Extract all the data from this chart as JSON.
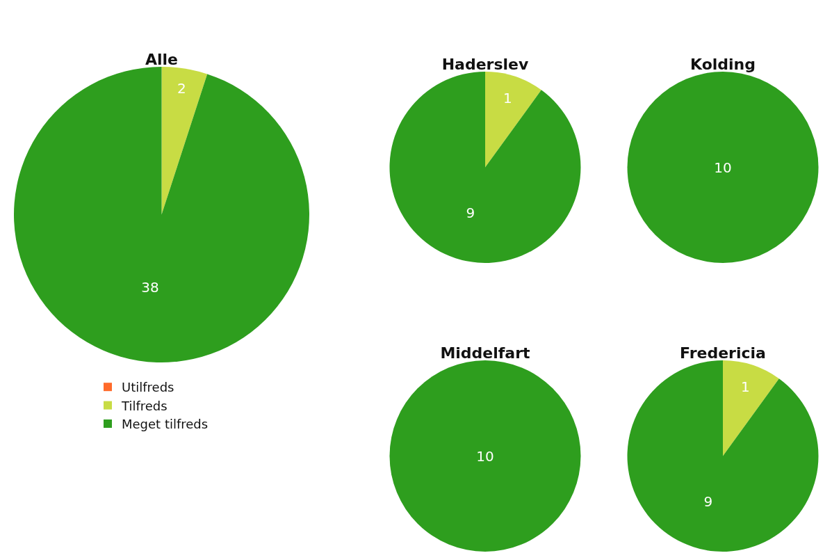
{
  "chart_data": [
    {
      "type": "pie",
      "title": "Alle",
      "categories": [
        "Utilfreds",
        "Tilfreds",
        "Meget tilfreds"
      ],
      "values": [
        0,
        2,
        38
      ],
      "value_labels": [
        null,
        "2",
        "38"
      ],
      "colors": [
        "#ff6a2a",
        "#c8dc44",
        "#2e9e1e"
      ],
      "legend": "bottom"
    },
    {
      "type": "pie",
      "title": "Haderslev",
      "categories": [
        null,
        null,
        null
      ],
      "values": [
        0,
        1,
        9
      ],
      "value_labels": [
        null,
        "1",
        "9"
      ],
      "colors": [
        "#ff6a2a",
        "#c8dc44",
        "#2e9e1e"
      ]
    },
    {
      "type": "pie",
      "title": "Kolding",
      "categories": [
        null,
        null,
        null
      ],
      "values": [
        0,
        0,
        10
      ],
      "value_labels": [
        null,
        null,
        "10"
      ],
      "colors": [
        "#ff6a2a",
        "#c8dc44",
        "#2e9e1e"
      ]
    },
    {
      "type": "pie",
      "title": "Middelfart",
      "categories": [
        null,
        null,
        null
      ],
      "values": [
        0,
        0,
        10
      ],
      "value_labels": [
        null,
        null,
        "10"
      ],
      "colors": [
        "#ff6a2a",
        "#c8dc44",
        "#2e9e1e"
      ]
    },
    {
      "type": "pie",
      "title": "Fredericia",
      "categories": [
        null,
        null,
        null
      ],
      "values": [
        0,
        1,
        9
      ],
      "value_labels": [
        null,
        "1",
        "9"
      ],
      "colors": [
        "#ff6a2a",
        "#c8dc44",
        "#2e9e1e"
      ]
    }
  ]
}
